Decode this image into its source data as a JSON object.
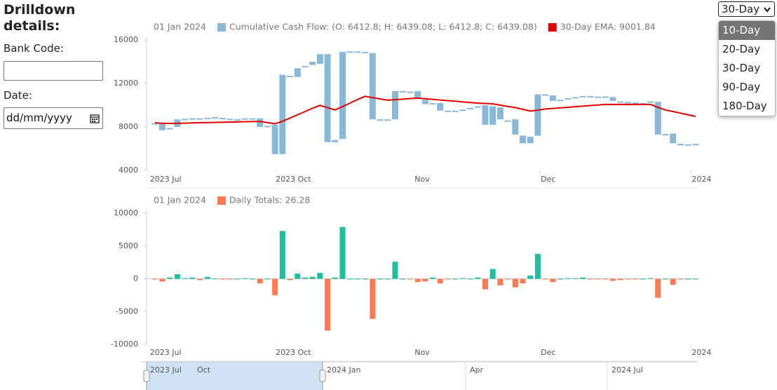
{
  "sidebar": {
    "title": "Drilldown details:",
    "bank_code_label": "Bank Code:",
    "date_label": "Date:",
    "date_placeholder": "dd/mm/yyyy"
  },
  "period_select": {
    "selected": "30-Day",
    "options": [
      "10-Day",
      "20-Day",
      "30-Day",
      "90-Day",
      "180-Day"
    ]
  },
  "chart_data": [
    {
      "type": "candlestick",
      "date_label": "01 Jan 2024",
      "xlim": [
        -1.1,
        72.3
      ],
      "xticks": [
        {
          "value": -0.75,
          "label": "2023 Jul"
        },
        {
          "value": 16,
          "label": "2023 Oct"
        },
        {
          "value": 34.5,
          "label": "Nov"
        },
        {
          "value": 51.3,
          "label": "Dec"
        },
        {
          "value": 71.4,
          "label": "2024"
        }
      ],
      "ylim": [
        4000,
        16000
      ],
      "yticks": [
        4000,
        8000,
        12000,
        16000
      ],
      "series": [
        {
          "name": "Cumulative Cash Flow: (O: 6412.8; H: 6439.08; L: 6412.8; C: 6439.08)",
          "color": "#8ab8d9",
          "open": [
            8350,
            8300,
            7800,
            8000,
            8700,
            8750,
            8700,
            8800,
            8850,
            8850,
            8750,
            8700,
            8750,
            8800,
            8800,
            8100,
            8200,
            5500,
            12700,
            12600,
            13500,
            13700,
            13800,
            14700,
            6600,
            6900,
            14900,
            14950,
            14900,
            14800,
            8700,
            8650,
            8700,
            11300,
            11250,
            11300,
            10500,
            10200,
            10200,
            9500,
            9450,
            9550,
            9700,
            9850,
            10000,
            9900,
            9800,
            8600,
            8700,
            7200,
            6500,
            7200,
            11000,
            10900,
            10450,
            10550,
            10700,
            10800,
            10850,
            10800,
            10800,
            10750,
            10350,
            10300,
            10250,
            10200,
            10250,
            10300,
            7300,
            7400,
            6450,
            6400,
            6412.8
          ],
          "close": [
            8250,
            7700,
            7900,
            8700,
            8750,
            8800,
            8800,
            8850,
            8900,
            8800,
            8700,
            8700,
            8800,
            8750,
            8000,
            8100,
            5500,
            12800,
            12600,
            13400,
            13600,
            14000,
            14700,
            6600,
            6800,
            14900,
            14950,
            14900,
            14850,
            8700,
            8650,
            8700,
            11300,
            11300,
            11200,
            10700,
            10100,
            10200,
            9500,
            9450,
            9500,
            9600,
            9750,
            9900,
            8200,
            8200,
            8700,
            8500,
            7300,
            6500,
            7100,
            11000,
            10900,
            10400,
            10500,
            10650,
            10750,
            10850,
            10800,
            10780,
            10750,
            10400,
            10300,
            10250,
            10200,
            10200,
            10350,
            7300,
            7350,
            6500,
            6400,
            6380,
            6439.08
          ]
        },
        {
          "name": "30-Day EMA: 9001.84",
          "color": "#e00000",
          "type": "line",
          "values": [
            8380,
            8340,
            8320,
            8340,
            8350,
            8370,
            8390,
            8400,
            8420,
            8430,
            8450,
            8460,
            8480,
            8500,
            8510,
            8400,
            8290,
            8520,
            8820,
            9120,
            9420,
            9720,
            9990,
            9780,
            9570,
            9870,
            10200,
            10530,
            10820,
            10700,
            10580,
            10460,
            10510,
            10560,
            10610,
            10650,
            10600,
            10540,
            10480,
            10420,
            10370,
            10310,
            10250,
            10190,
            10160,
            10130,
            10010,
            9890,
            9780,
            9620,
            9460,
            9550,
            9660,
            9700,
            9760,
            9810,
            9860,
            9920,
            9970,
            10020,
            10070,
            10070,
            10070,
            10070,
            10070,
            10070,
            10070,
            9800,
            9560,
            9420,
            9270,
            9120,
            8970
          ]
        }
      ]
    },
    {
      "type": "bar",
      "date_label": "01 Jan 2024",
      "xlim": [
        -1.1,
        72.3
      ],
      "xticks": [
        {
          "value": -0.75,
          "label": "2023 Jul"
        },
        {
          "value": 16,
          "label": "2023 Oct"
        },
        {
          "value": 34.5,
          "label": "Nov"
        },
        {
          "value": 51.3,
          "label": "Dec"
        },
        {
          "value": 71.4,
          "label": "2024"
        }
      ],
      "ylim": [
        -10000,
        10000
      ],
      "yticks": [
        -10000,
        -5000,
        0,
        5000,
        10000
      ],
      "series": [
        {
          "name": "Daily Totals: 26.28",
          "color": "#ff7a50",
          "positive_color": "#1dbf9c",
          "values": [
            -100,
            -400,
            200,
            700,
            100,
            200,
            -200,
            300,
            50,
            -100,
            -100,
            0,
            100,
            0,
            -700,
            0,
            -2500,
            7300,
            -200,
            800,
            200,
            300,
            900,
            -7900,
            200,
            7900,
            0,
            0,
            0,
            -6100,
            0,
            0,
            2600,
            0,
            -100,
            -500,
            -400,
            200,
            -700,
            -100,
            0,
            100,
            0,
            200,
            -1600,
            1500,
            -1000,
            -100,
            -1300,
            -700,
            500,
            3800,
            -100,
            -500,
            0,
            100,
            100,
            200,
            -100,
            -50,
            -50,
            -300,
            -200,
            -50,
            -100,
            0,
            100,
            -2900,
            0,
            -900,
            -100,
            0,
            26.28
          ]
        }
      ]
    }
  ],
  "navigator": {
    "labels": [
      "2023 Jul",
      "Oct",
      "2024 Jan",
      "Apr",
      "2024 Jul"
    ]
  }
}
